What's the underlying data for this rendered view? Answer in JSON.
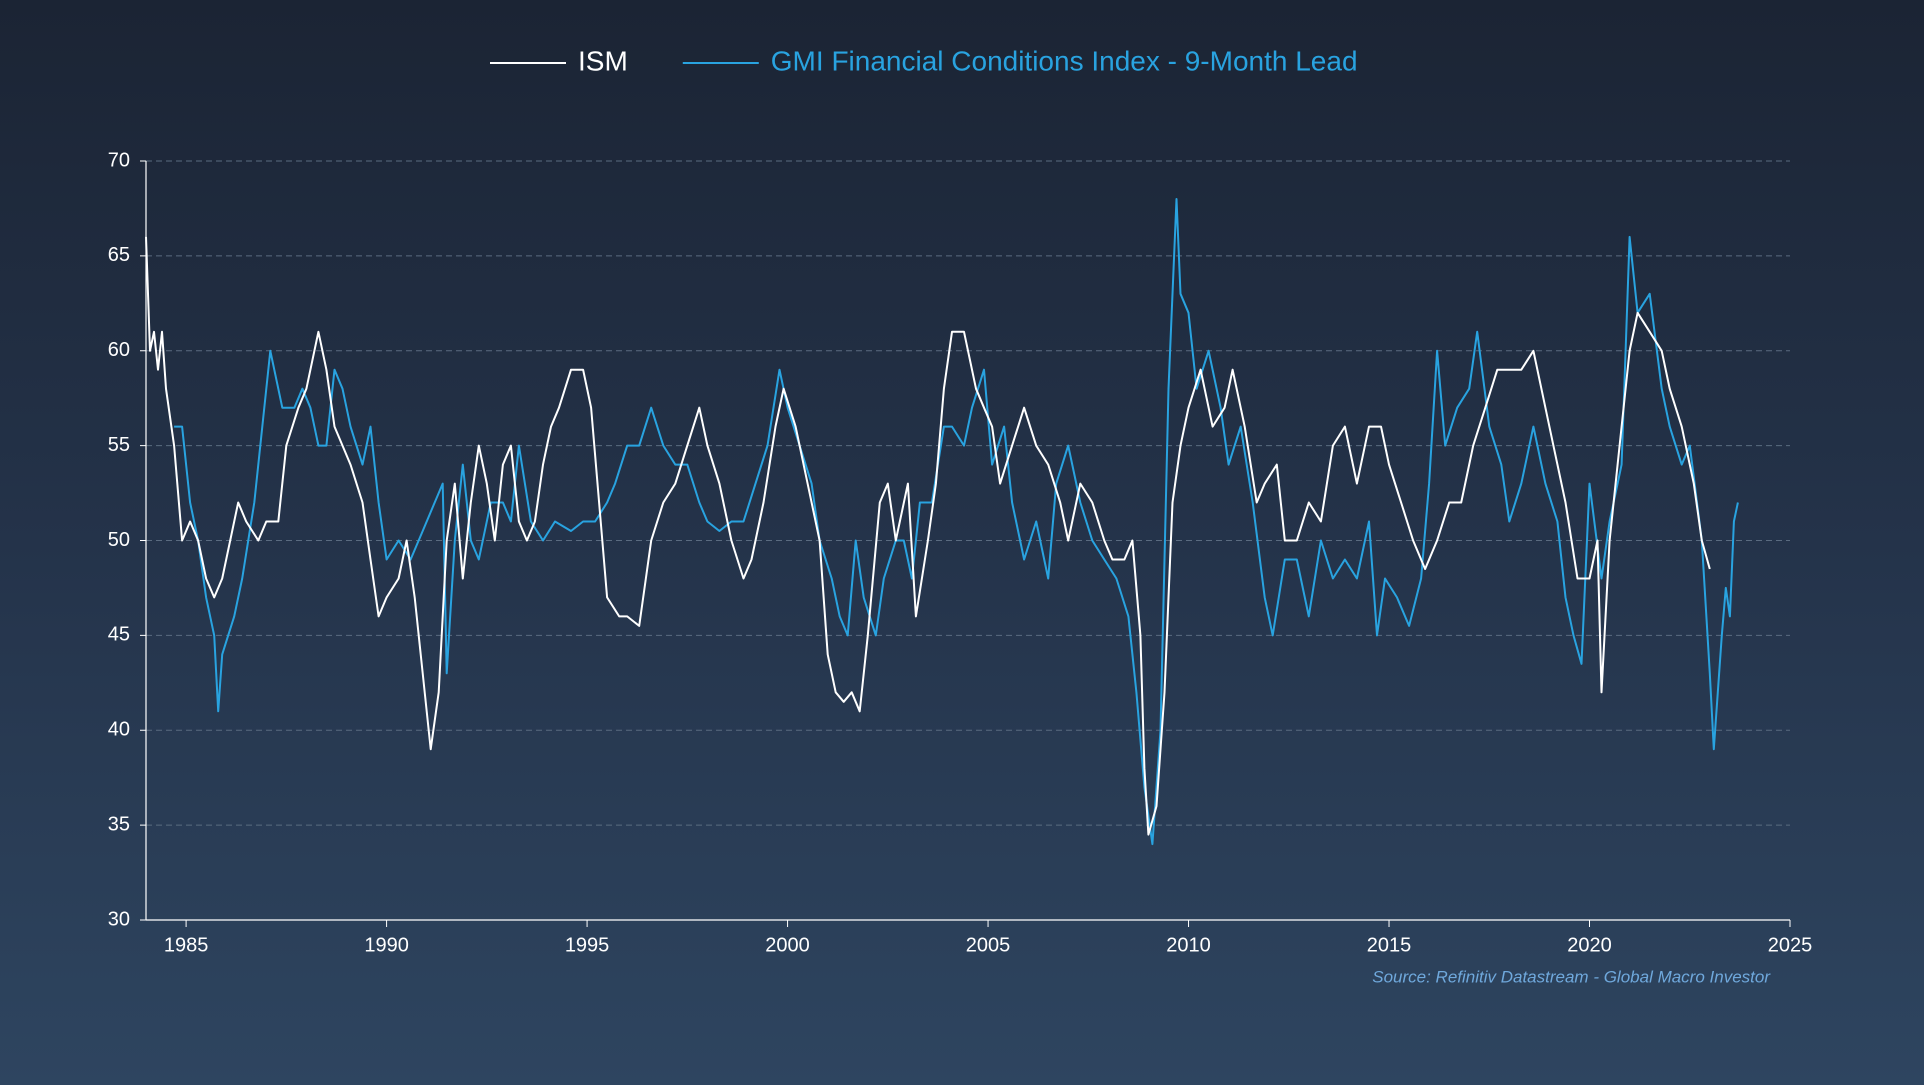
{
  "chart_data": {
    "type": "line",
    "source": "Source: Refinitiv Datastream - Global Macro Investor",
    "xlim": [
      1984,
      2025
    ],
    "xticks": [
      1985,
      1990,
      1995,
      2000,
      2005,
      2010,
      2015,
      2020,
      2025
    ],
    "ylim": [
      30,
      70
    ],
    "yticks": [
      30,
      35,
      40,
      45,
      50,
      55,
      60,
      65,
      70
    ],
    "grid": true,
    "legend": "top",
    "series": [
      {
        "name": "ISM",
        "color": "#ffffff",
        "x": [
          1984.0,
          1984.1,
          1984.2,
          1984.3,
          1984.4,
          1984.5,
          1984.7,
          1984.9,
          1985.1,
          1985.3,
          1985.5,
          1985.7,
          1985.9,
          1986.1,
          1986.3,
          1986.5,
          1986.8,
          1987.0,
          1987.3,
          1987.5,
          1987.8,
          1988.0,
          1988.3,
          1988.5,
          1988.7,
          1988.9,
          1989.1,
          1989.4,
          1989.6,
          1989.8,
          1990.0,
          1990.3,
          1990.5,
          1990.7,
          1990.9,
          1991.0,
          1991.1,
          1991.3,
          1991.5,
          1991.7,
          1991.9,
          1992.1,
          1992.3,
          1992.5,
          1992.7,
          1992.9,
          1993.1,
          1993.3,
          1993.5,
          1993.7,
          1993.9,
          1994.1,
          1994.3,
          1994.6,
          1994.9,
          1995.1,
          1995.3,
          1995.5,
          1995.8,
          1996.0,
          1996.3,
          1996.6,
          1996.9,
          1997.2,
          1997.5,
          1997.8,
          1998.0,
          1998.3,
          1998.6,
          1998.9,
          1999.1,
          1999.4,
          1999.7,
          1999.9,
          2000.2,
          2000.5,
          2000.8,
          2001.0,
          2001.2,
          2001.4,
          2001.6,
          2001.8,
          2002.0,
          2002.3,
          2002.5,
          2002.7,
          2003.0,
          2003.2,
          2003.5,
          2003.7,
          2003.9,
          2004.1,
          2004.4,
          2004.7,
          2004.9,
          2005.1,
          2005.3,
          2005.6,
          2005.9,
          2006.2,
          2006.5,
          2006.8,
          2007.0,
          2007.3,
          2007.6,
          2007.9,
          2008.1,
          2008.4,
          2008.6,
          2008.8,
          2008.9,
          2009.0,
          2009.2,
          2009.4,
          2009.6,
          2009.8,
          2010.0,
          2010.3,
          2010.6,
          2010.9,
          2011.1,
          2011.4,
          2011.7,
          2011.9,
          2012.2,
          2012.4,
          2012.7,
          2013.0,
          2013.3,
          2013.6,
          2013.9,
          2014.2,
          2014.5,
          2014.8,
          2015.0,
          2015.3,
          2015.6,
          2015.9,
          2016.2,
          2016.5,
          2016.8,
          2017.1,
          2017.4,
          2017.7,
          2018.0,
          2018.3,
          2018.6,
          2018.9,
          2019.1,
          2019.4,
          2019.7,
          2020.0,
          2020.2,
          2020.3,
          2020.5,
          2020.8,
          2021.0,
          2021.2,
          2021.5,
          2021.8,
          2022.0,
          2022.3,
          2022.6,
          2022.8,
          2023.0
        ],
        "values": [
          66,
          60,
          61,
          59,
          61,
          58,
          55,
          50,
          51,
          50,
          48,
          47,
          48,
          50,
          52,
          51,
          50,
          51,
          51,
          55,
          57,
          58,
          61,
          59,
          56,
          55,
          54,
          52,
          49,
          46,
          47,
          48,
          50,
          47,
          43,
          41,
          39,
          42,
          50,
          53,
          48,
          52,
          55,
          53,
          50,
          54,
          55,
          51,
          50,
          51,
          54,
          56,
          57,
          59,
          59,
          57,
          52,
          47,
          46,
          46,
          45.5,
          50,
          52,
          53,
          55,
          57,
          55,
          53,
          50,
          48,
          49,
          52,
          56,
          58,
          56,
          53,
          50,
          44,
          42,
          41.5,
          42,
          41,
          45,
          52,
          53,
          50,
          53,
          46,
          50,
          53,
          58,
          61,
          61,
          58,
          57,
          56,
          53,
          55,
          57,
          55,
          54,
          52,
          50,
          53,
          52,
          50,
          49,
          49,
          50,
          45,
          38,
          34.5,
          36,
          42,
          52,
          55,
          57,
          59,
          56,
          57,
          59,
          56,
          52,
          53,
          54,
          50,
          50,
          52,
          51,
          55,
          56,
          53,
          56,
          56,
          54,
          52,
          50,
          48.5,
          50,
          52,
          52,
          55,
          57,
          59,
          59,
          59,
          60,
          57,
          55,
          52,
          48,
          48,
          50,
          42,
          50,
          56,
          60,
          62,
          61,
          60,
          58,
          56,
          53,
          50,
          48.5
        ]
      },
      {
        "name": "GMI Financial Conditions Index - 9-Month Lead",
        "color": "#29a3e0",
        "x": [
          1984.7,
          1984.9,
          1985.1,
          1985.3,
          1985.5,
          1985.7,
          1985.8,
          1985.9,
          1986.2,
          1986.4,
          1986.7,
          1986.9,
          1987.1,
          1987.4,
          1987.7,
          1987.9,
          1988.1,
          1988.3,
          1988.5,
          1988.7,
          1988.9,
          1989.1,
          1989.4,
          1989.6,
          1989.8,
          1990.0,
          1990.3,
          1990.6,
          1990.9,
          1991.2,
          1991.4,
          1991.5,
          1991.7,
          1991.9,
          1992.1,
          1992.3,
          1992.6,
          1992.9,
          1993.1,
          1993.3,
          1993.6,
          1993.9,
          1994.2,
          1994.6,
          1994.9,
          1995.2,
          1995.5,
          1995.7,
          1996.0,
          1996.3,
          1996.6,
          1996.9,
          1997.2,
          1997.5,
          1997.8,
          1998.0,
          1998.3,
          1998.6,
          1998.9,
          1999.2,
          1999.5,
          1999.8,
          2000.0,
          2000.3,
          2000.6,
          2000.8,
          2001.1,
          2001.3,
          2001.5,
          2001.7,
          2001.9,
          2002.2,
          2002.4,
          2002.7,
          2002.9,
          2003.1,
          2003.3,
          2003.6,
          2003.9,
          2004.1,
          2004.4,
          2004.6,
          2004.9,
          2005.1,
          2005.4,
          2005.6,
          2005.9,
          2006.2,
          2006.5,
          2006.7,
          2007.0,
          2007.3,
          2007.6,
          2007.9,
          2008.2,
          2008.5,
          2008.7,
          2008.9,
          2009.1,
          2009.3,
          2009.5,
          2009.7,
          2009.8,
          2010.0,
          2010.2,
          2010.5,
          2010.8,
          2011.0,
          2011.3,
          2011.6,
          2011.9,
          2012.1,
          2012.4,
          2012.7,
          2013.0,
          2013.3,
          2013.6,
          2013.9,
          2014.2,
          2014.5,
          2014.7,
          2014.9,
          2015.2,
          2015.5,
          2015.8,
          2016.0,
          2016.2,
          2016.4,
          2016.7,
          2017.0,
          2017.2,
          2017.5,
          2017.8,
          2018.0,
          2018.3,
          2018.6,
          2018.9,
          2019.2,
          2019.4,
          2019.6,
          2019.8,
          2020.0,
          2020.3,
          2020.5,
          2020.8,
          2021.0,
          2021.2,
          2021.5,
          2021.8,
          2022.0,
          2022.3,
          2022.5,
          2022.8,
          2023.0,
          2023.1,
          2023.3,
          2023.4,
          2023.5,
          2023.6,
          2023.7
        ],
        "values": [
          56,
          56,
          52,
          50,
          47,
          45,
          41,
          44,
          46,
          48,
          52,
          56,
          60,
          57,
          57,
          58,
          57,
          55,
          55,
          59,
          58,
          56,
          54,
          56,
          52,
          49,
          50,
          49,
          50.5,
          52,
          53,
          43,
          50,
          54,
          50,
          49,
          52,
          52,
          51,
          55,
          51,
          50,
          51,
          50.5,
          51,
          51,
          52,
          53,
          55,
          55,
          57,
          55,
          54,
          54,
          52,
          51,
          50.5,
          51,
          51,
          53,
          55,
          59,
          57,
          55,
          53,
          50,
          48,
          46,
          45,
          50,
          47,
          45,
          48,
          50,
          50,
          48,
          52,
          52,
          56,
          56,
          55,
          57,
          59,
          54,
          56,
          52,
          49,
          51,
          48,
          53,
          55,
          52,
          50,
          49,
          48,
          46,
          42,
          37,
          34,
          40,
          58,
          68,
          63,
          62,
          58,
          60,
          57,
          54,
          56,
          52,
          47,
          45,
          49,
          49,
          46,
          50,
          48,
          49,
          48,
          51,
          45,
          48,
          47,
          45.5,
          48,
          53,
          60,
          55,
          57,
          58,
          61,
          56,
          54,
          51,
          53,
          56,
          53,
          51,
          47,
          45,
          43.5,
          53,
          48,
          51,
          54,
          66,
          62,
          63,
          58,
          56,
          54,
          55,
          50,
          43,
          39,
          45,
          47.5,
          46,
          51,
          52
        ]
      }
    ]
  }
}
